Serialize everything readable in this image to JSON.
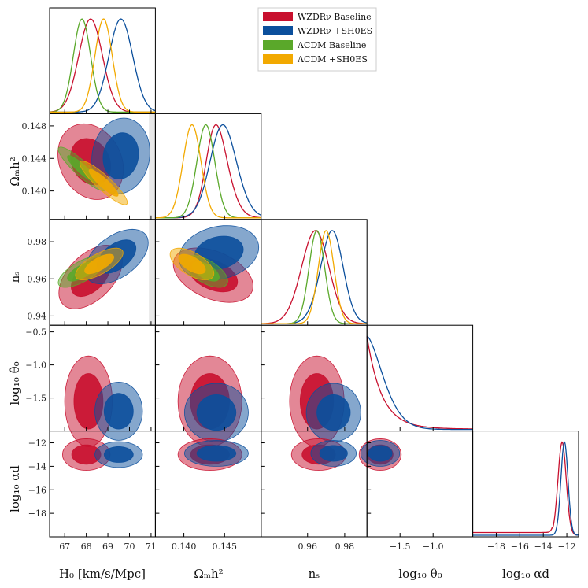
{
  "chart_data": {
    "type": "corner",
    "title": "",
    "parameters": [
      {
        "key": "H0",
        "label": "H₀ [km/s/Mpc]",
        "range": [
          66.3,
          71.2
        ],
        "ticks": [
          67,
          68,
          69,
          70,
          71
        ]
      },
      {
        "key": "omh2",
        "label": "Ωₘh²",
        "range": [
          0.1365,
          0.1495
        ],
        "ticks": [
          0.14,
          0.145
        ],
        "row_ticks": [
          0.14,
          0.144,
          0.148
        ]
      },
      {
        "key": "ns",
        "label": "nₛ",
        "range": [
          0.935,
          0.992
        ],
        "ticks": [
          0.96,
          0.98
        ],
        "row_ticks": [
          0.94,
          0.96,
          0.98
        ]
      },
      {
        "key": "logtheta",
        "label": "log₁₀ θ₀",
        "range": [
          -2.0,
          -0.4
        ],
        "ticks": [
          -1.5,
          -1.0
        ],
        "row_ticks": [
          -1.5,
          -1.0,
          -0.5
        ]
      },
      {
        "key": "logalpha",
        "label": "log₁₀ αd",
        "range": [
          -20.0,
          -11.0
        ],
        "ticks": [
          -18,
          -16,
          -14,
          -12
        ],
        "row_ticks": [
          -18,
          -16,
          -14,
          -12
        ]
      }
    ],
    "series": [
      {
        "name": "WZDRν Baseline",
        "color": "#c8102e",
        "params": [
          "H0",
          "omh2",
          "ns",
          "logtheta",
          "logalpha"
        ],
        "mean": {
          "H0": 68.2,
          "omh2": 0.1436,
          "ns": 0.963
        }
      },
      {
        "name": "WZDRν +SH0ES",
        "color": "#0b4f9c",
        "params": [
          "H0",
          "omh2",
          "ns",
          "logtheta",
          "logalpha"
        ],
        "mean": {
          "H0": 69.6,
          "omh2": 0.1443,
          "ns": 0.975
        }
      },
      {
        "name": "ΛCDM Baseline",
        "color": "#5aa82a",
        "params": [
          "H0",
          "omh2",
          "ns"
        ],
        "mean": {
          "H0": 67.8,
          "omh2": 0.1427,
          "ns": 0.965
        }
      },
      {
        "name": "ΛCDM +SH0ES",
        "color": "#f2a900",
        "params": [
          "H0",
          "omh2",
          "ns"
        ],
        "mean": {
          "H0": 68.8,
          "omh2": 0.141,
          "ns": 0.97
        }
      }
    ],
    "legend_position": "top-right"
  }
}
